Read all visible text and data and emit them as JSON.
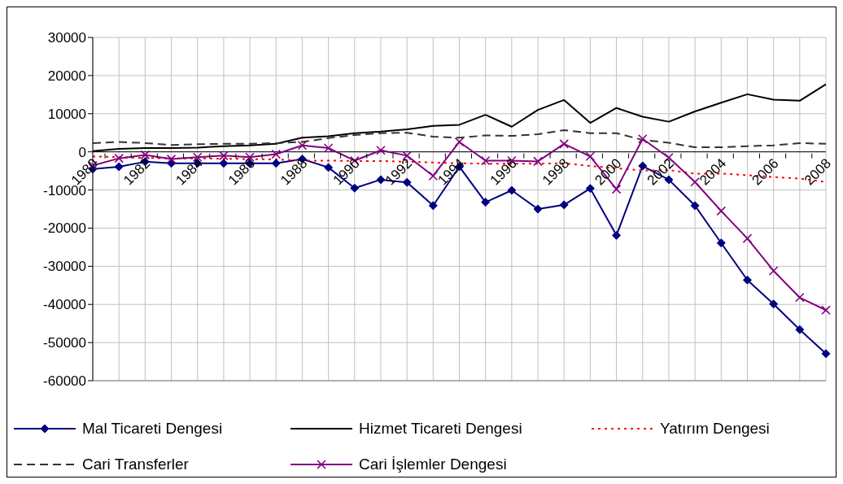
{
  "chart_data": {
    "type": "line",
    "categories": [
      "1980",
      null,
      "1982",
      null,
      "1984",
      null,
      "1986",
      null,
      "1988",
      null,
      "1990",
      null,
      "1992",
      null,
      "1994",
      null,
      "1996",
      null,
      "1998",
      null,
      "2000",
      null,
      "2002",
      null,
      "2004",
      null,
      "2006",
      null,
      "2008"
    ],
    "series": [
      {
        "name": "Mal Ticareti Dengesi",
        "color": "#000080",
        "marker": "diamond",
        "line_style": "solid",
        "values": [
          -4500,
          -3900,
          -2600,
          -3000,
          -3000,
          -3000,
          -3000,
          -3000,
          -1900,
          -4100,
          -9500,
          -7300,
          -8000,
          -14100,
          -3900,
          -13200,
          -10100,
          -15000,
          -13900,
          -9600,
          -21900,
          -3700,
          -7300,
          -14100,
          -23900,
          -33600,
          -39900,
          -46600,
          -52900
        ]
      },
      {
        "name": "Hizmet Ticareti Dengesi",
        "color": "#000000",
        "marker": "none",
        "line_style": "solid",
        "values": [
          200,
          800,
          1000,
          1000,
          1100,
          1500,
          1700,
          2100,
          3700,
          4100,
          4900,
          5300,
          5900,
          6800,
          7100,
          9700,
          6600,
          11000,
          13600,
          7600,
          11500,
          9200,
          7900,
          10600,
          12900,
          15100,
          13700,
          13400,
          17700
        ]
      },
      {
        "name": "Yatırım Dengesi",
        "color": "#ff0000",
        "marker": "none",
        "line_style": "dotted",
        "values": [
          -1200,
          -1400,
          -1600,
          -1700,
          -1700,
          -1800,
          -1900,
          -2000,
          -2300,
          -2300,
          -2400,
          -2400,
          -2600,
          -2800,
          -3000,
          -3100,
          -3100,
          -3100,
          -3000,
          -3700,
          -4300,
          -4900,
          -4800,
          -5700,
          -5700,
          -6100,
          -6600,
          -7000,
          -7900
        ]
      },
      {
        "name": "Cari Transferler",
        "color": "#333333",
        "marker": "none",
        "line_style": "dashed",
        "values": [
          2300,
          2600,
          2300,
          1800,
          2000,
          2100,
          2100,
          2300,
          2600,
          3600,
          4400,
          4900,
          5000,
          4000,
          3700,
          4300,
          4200,
          4600,
          5700,
          4900,
          4900,
          3100,
          2400,
          1200,
          1200,
          1500,
          1700,
          2300,
          2100
        ]
      },
      {
        "name": "Cari İşlemler Dengesi",
        "color": "#800080",
        "marker": "cross",
        "line_style": "solid",
        "values": [
          -3600,
          -1700,
          -800,
          -1900,
          -1400,
          -1000,
          -1400,
          -600,
          1700,
          1000,
          -2300,
          400,
          -1000,
          -6300,
          2600,
          -2300,
          -2300,
          -2500,
          2100,
          -1200,
          -9800,
          3400,
          -1500,
          -7900,
          -15500,
          -22700,
          -31200,
          -38200,
          -41500
        ]
      }
    ],
    "ylim": [
      -60000,
      30000
    ],
    "yticks": [
      30000,
      20000,
      10000,
      0,
      -10000,
      -20000,
      -30000,
      -40000,
      -50000,
      -60000
    ],
    "grid": true,
    "legend": "bottom"
  }
}
